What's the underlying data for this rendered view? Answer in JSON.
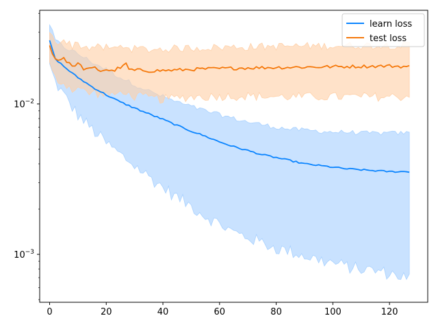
{
  "chart_data": {
    "type": "line",
    "title": "",
    "xlabel": "",
    "ylabel": "",
    "xlim": [
      -3.5,
      133.5
    ],
    "ylim": [
      0.00048,
      0.042
    ],
    "yscale": "log",
    "grid": false,
    "legend_position": "top-right",
    "x_ticks": [
      0,
      20,
      40,
      60,
      80,
      100,
      120
    ],
    "x_tick_labels": [
      "0",
      "20",
      "40",
      "60",
      "80",
      "100",
      "120"
    ],
    "y_ticks": [
      0.001,
      0.01
    ],
    "y_tick_base": "10",
    "y_tick_exponents": [
      "−3",
      "−2"
    ],
    "series": [
      {
        "name": "learn loss",
        "color": "#1f77b4",
        "line_color": "#0a84ff",
        "band_color": "#a8d1ff",
        "x_key": [
          0,
          2,
          5,
          8,
          10,
          15,
          20,
          25,
          30,
          35,
          40,
          45,
          50,
          55,
          60,
          65,
          70,
          75,
          80,
          85,
          90,
          95,
          100,
          105,
          110,
          115,
          120,
          127
        ],
        "mean": [
          0.0265,
          0.02,
          0.0178,
          0.016,
          0.015,
          0.013,
          0.0115,
          0.0103,
          0.0094,
          0.0086,
          0.0079,
          0.0072,
          0.0066,
          0.0061,
          0.0056,
          0.0052,
          0.0049,
          0.0046,
          0.0044,
          0.0042,
          0.004,
          0.0039,
          0.0038,
          0.0037,
          0.00365,
          0.0036,
          0.00355,
          0.00355
        ],
        "lower": [
          0.018,
          0.014,
          0.0115,
          0.0095,
          0.0085,
          0.0068,
          0.0055,
          0.0046,
          0.0039,
          0.0033,
          0.0028,
          0.0024,
          0.0021,
          0.0018,
          0.0016,
          0.0014,
          0.0013,
          0.0012,
          0.0011,
          0.00105,
          0.00098,
          0.00092,
          0.00088,
          0.00083,
          0.0008,
          0.00078,
          0.00075,
          0.0007
        ],
        "upper": [
          0.034,
          0.0265,
          0.024,
          0.0225,
          0.0215,
          0.019,
          0.017,
          0.015,
          0.0135,
          0.0122,
          0.0112,
          0.0103,
          0.0096,
          0.009,
          0.0085,
          0.008,
          0.0076,
          0.0073,
          0.007,
          0.0068,
          0.0067,
          0.0066,
          0.0065,
          0.0065,
          0.0064,
          0.0064,
          0.0064,
          0.0064
        ]
      },
      {
        "name": "test loss",
        "color": "#ff7f0e",
        "line_color": "#f5780a",
        "band_color": "#ffd0a8",
        "x_key": [
          0,
          1,
          2,
          3,
          4,
          5,
          6,
          7,
          8,
          9,
          10,
          12,
          14,
          16,
          18,
          20,
          22,
          24,
          26,
          27,
          28,
          30,
          32,
          35,
          40,
          45,
          50,
          55,
          60,
          70,
          80,
          90,
          100,
          110,
          120,
          127
        ],
        "mean": [
          0.0245,
          0.0215,
          0.02,
          0.0195,
          0.0198,
          0.0205,
          0.0192,
          0.0188,
          0.0175,
          0.0183,
          0.0186,
          0.0172,
          0.017,
          0.0174,
          0.0166,
          0.017,
          0.0165,
          0.0172,
          0.0178,
          0.0185,
          0.017,
          0.0167,
          0.0168,
          0.0166,
          0.0167,
          0.0168,
          0.017,
          0.0171,
          0.0172,
          0.0174,
          0.0175,
          0.0176,
          0.0177,
          0.0178,
          0.0179,
          0.0177
        ],
        "lower": [
          0.0185,
          0.016,
          0.015,
          0.0145,
          0.014,
          0.0138,
          0.0135,
          0.013,
          0.0125,
          0.0128,
          0.013,
          0.0122,
          0.0118,
          0.012,
          0.0115,
          0.0118,
          0.0113,
          0.0118,
          0.012,
          0.0123,
          0.0115,
          0.0112,
          0.0113,
          0.011,
          0.0108,
          0.011,
          0.0112,
          0.0112,
          0.0113,
          0.0113,
          0.0112,
          0.0112,
          0.0112,
          0.0112,
          0.0112,
          0.0112
        ],
        "upper": [
          0.031,
          0.0275,
          0.0265,
          0.026,
          0.0262,
          0.0268,
          0.0255,
          0.025,
          0.0245,
          0.025,
          0.0252,
          0.024,
          0.0238,
          0.024,
          0.0235,
          0.0238,
          0.0232,
          0.0238,
          0.0242,
          0.0248,
          0.0236,
          0.0232,
          0.0233,
          0.023,
          0.0232,
          0.0234,
          0.0236,
          0.0237,
          0.0238,
          0.024,
          0.0242,
          0.0243,
          0.0244,
          0.0245,
          0.0246,
          0.0246
        ]
      }
    ]
  }
}
